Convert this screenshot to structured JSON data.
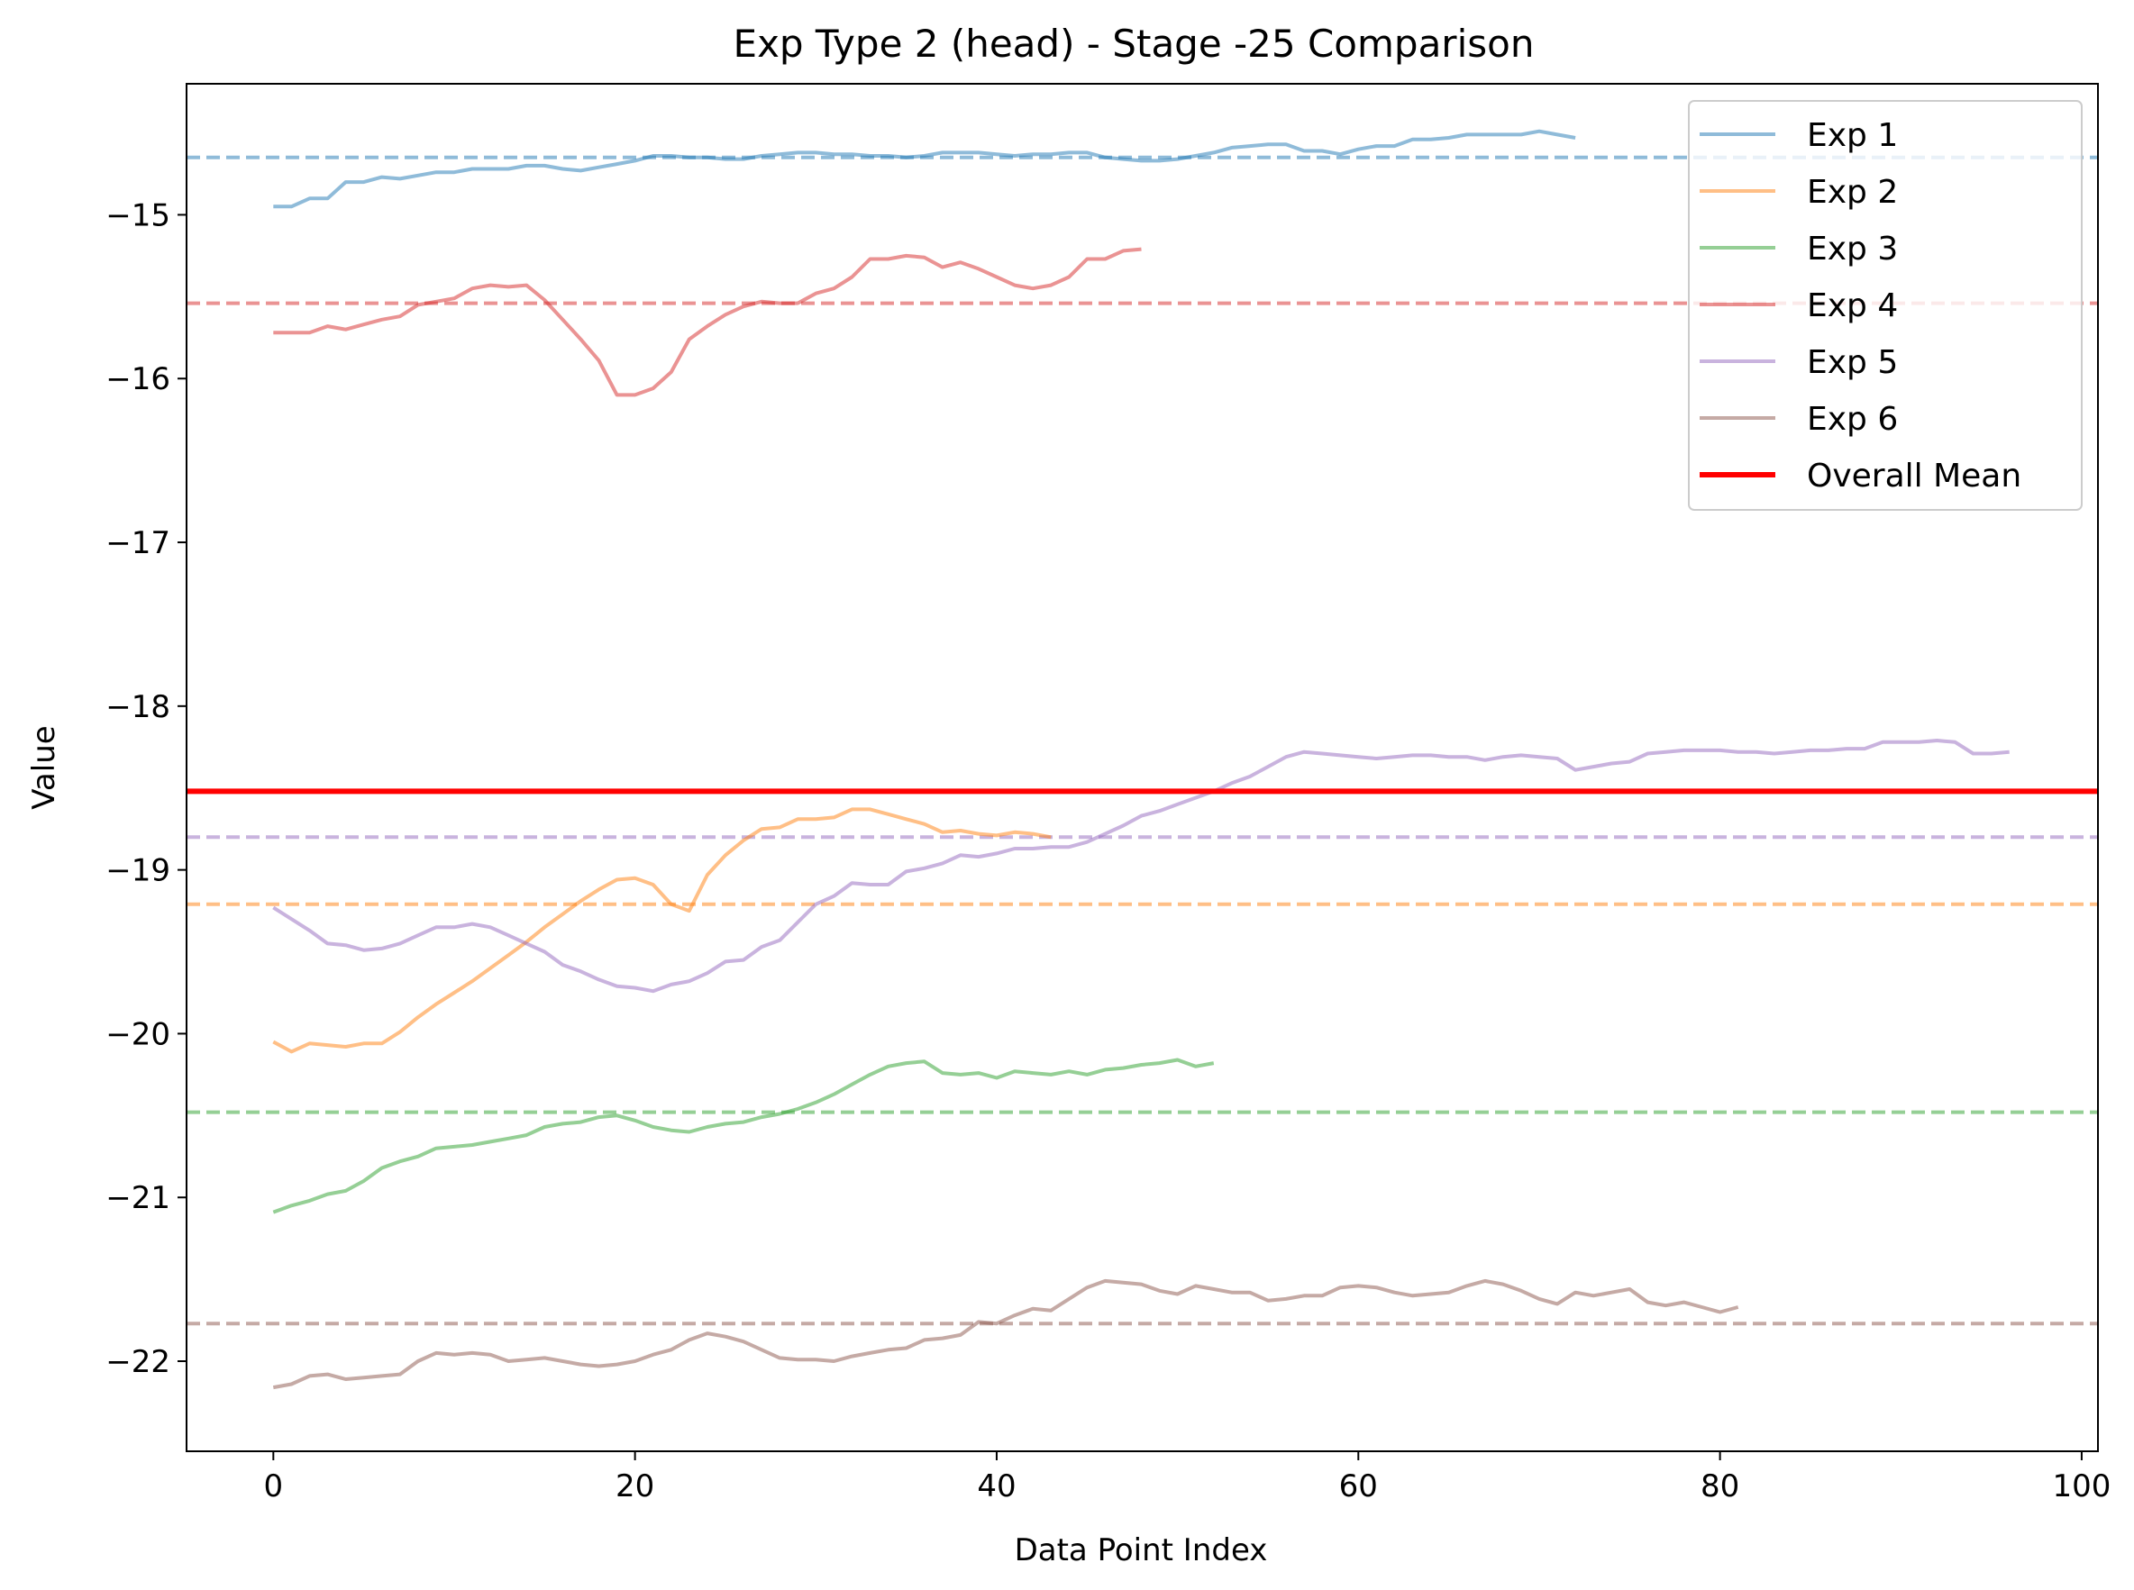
{
  "chart_data": {
    "type": "line",
    "title": "Exp Type 2 (head) - Stage -25 Comparison",
    "xlabel": "Data Point Index",
    "ylabel": "Value",
    "xlim": [
      -4.8,
      100.9
    ],
    "ylim": [
      -22.55,
      -14.2
    ],
    "xticks": [
      0,
      20,
      40,
      60,
      80,
      100
    ],
    "yticks": [
      -15,
      -16,
      -17,
      -18,
      -19,
      -20,
      -21,
      -22
    ],
    "xtick_labels": [
      "0",
      "20",
      "40",
      "60",
      "80",
      "100"
    ],
    "ytick_labels": [
      "−15",
      "−16",
      "−17",
      "−18",
      "−19",
      "−20",
      "−21",
      "−22"
    ],
    "legend_position": "top-right",
    "grid": false,
    "overall_mean": {
      "name": "Overall Mean",
      "value": -18.52,
      "color": "#ff0000"
    },
    "series": [
      {
        "name": "Exp 1",
        "color": "#1f77b4",
        "mean": -14.65,
        "values": [
          -14.95,
          -14.95,
          -14.9,
          -14.9,
          -14.8,
          -14.8,
          -14.77,
          -14.78,
          -14.76,
          -14.74,
          -14.74,
          -14.72,
          -14.72,
          -14.72,
          -14.7,
          -14.7,
          -14.72,
          -14.73,
          -14.71,
          -14.69,
          -14.67,
          -14.64,
          -14.64,
          -14.65,
          -14.65,
          -14.66,
          -14.66,
          -14.64,
          -14.63,
          -14.62,
          -14.62,
          -14.63,
          -14.63,
          -14.64,
          -14.64,
          -14.65,
          -14.64,
          -14.62,
          -14.62,
          -14.62,
          -14.63,
          -14.64,
          -14.63,
          -14.63,
          -14.62,
          -14.62,
          -14.65,
          -14.66,
          -14.67,
          -14.67,
          -14.66,
          -14.64,
          -14.62,
          -14.59,
          -14.58,
          -14.57,
          -14.57,
          -14.61,
          -14.61,
          -14.63,
          -14.6,
          -14.58,
          -14.58,
          -14.54,
          -14.54,
          -14.53,
          -14.51,
          -14.51,
          -14.51,
          -14.51,
          -14.49,
          -14.51,
          -14.53
        ]
      },
      {
        "name": "Exp 2",
        "color": "#ff7f0e",
        "mean": -19.21,
        "values": [
          -20.05,
          -20.11,
          -20.06,
          -20.07,
          -20.08,
          -20.06,
          -20.06,
          -19.99,
          -19.9,
          -19.82,
          -19.75,
          -19.68,
          -19.6,
          -19.52,
          -19.44,
          -19.35,
          -19.27,
          -19.19,
          -19.12,
          -19.06,
          -19.05,
          -19.09,
          -19.21,
          -19.25,
          -19.03,
          -18.91,
          -18.82,
          -18.75,
          -18.74,
          -18.69,
          -18.69,
          -18.68,
          -18.63,
          -18.63,
          -18.66,
          -18.69,
          -18.72,
          -18.77,
          -18.76,
          -18.78,
          -18.79,
          -18.77,
          -18.78,
          -18.8
        ]
      },
      {
        "name": "Exp 3",
        "color": "#2ca02c",
        "mean": -20.48,
        "values": [
          -21.09,
          -21.05,
          -21.02,
          -20.98,
          -20.96,
          -20.9,
          -20.82,
          -20.78,
          -20.75,
          -20.7,
          -20.69,
          -20.68,
          -20.66,
          -20.64,
          -20.62,
          -20.57,
          -20.55,
          -20.54,
          -20.51,
          -20.5,
          -20.53,
          -20.57,
          -20.59,
          -20.6,
          -20.57,
          -20.55,
          -20.54,
          -20.51,
          -20.49,
          -20.46,
          -20.42,
          -20.37,
          -20.31,
          -20.25,
          -20.2,
          -20.18,
          -20.17,
          -20.24,
          -20.25,
          -20.24,
          -20.27,
          -20.23,
          -20.24,
          -20.25,
          -20.23,
          -20.25,
          -20.22,
          -20.21,
          -20.19,
          -20.18,
          -20.16,
          -20.2,
          -20.18
        ]
      },
      {
        "name": "Exp 4",
        "color": "#d62728",
        "mean": -15.54,
        "values": [
          -15.72,
          -15.72,
          -15.72,
          -15.68,
          -15.7,
          -15.67,
          -15.64,
          -15.62,
          -15.55,
          -15.53,
          -15.51,
          -15.45,
          -15.43,
          -15.44,
          -15.43,
          -15.52,
          -15.64,
          -15.76,
          -15.89,
          -16.1,
          -16.1,
          -16.06,
          -15.96,
          -15.76,
          -15.68,
          -15.61,
          -15.56,
          -15.53,
          -15.54,
          -15.54,
          -15.48,
          -15.45,
          -15.38,
          -15.27,
          -15.27,
          -15.25,
          -15.26,
          -15.32,
          -15.29,
          -15.33,
          -15.38,
          -15.43,
          -15.45,
          -15.43,
          -15.38,
          -15.27,
          -15.27,
          -15.22,
          -15.21
        ]
      },
      {
        "name": "Exp 5",
        "color": "#9467bd",
        "mean": -18.8,
        "values": [
          -19.23,
          -19.3,
          -19.37,
          -19.45,
          -19.46,
          -19.49,
          -19.48,
          -19.45,
          -19.4,
          -19.35,
          -19.35,
          -19.33,
          -19.35,
          -19.4,
          -19.45,
          -19.5,
          -19.58,
          -19.62,
          -19.67,
          -19.71,
          -19.72,
          -19.74,
          -19.7,
          -19.68,
          -19.63,
          -19.56,
          -19.55,
          -19.47,
          -19.43,
          -19.32,
          -19.21,
          -19.16,
          -19.08,
          -19.09,
          -19.09,
          -19.01,
          -18.99,
          -18.96,
          -18.91,
          -18.92,
          -18.9,
          -18.87,
          -18.87,
          -18.86,
          -18.86,
          -18.83,
          -18.78,
          -18.73,
          -18.67,
          -18.64,
          -18.6,
          -18.56,
          -18.52,
          -18.47,
          -18.43,
          -18.37,
          -18.31,
          -18.28,
          -18.29,
          -18.3,
          -18.31,
          -18.32,
          -18.31,
          -18.3,
          -18.3,
          -18.31,
          -18.31,
          -18.33,
          -18.31,
          -18.3,
          -18.31,
          -18.32,
          -18.39,
          -18.37,
          -18.35,
          -18.34,
          -18.29,
          -18.28,
          -18.27,
          -18.27,
          -18.27,
          -18.28,
          -18.28,
          -18.29,
          -18.28,
          -18.27,
          -18.27,
          -18.26,
          -18.26,
          -18.22,
          -18.22,
          -18.22,
          -18.21,
          -18.22,
          -18.29,
          -18.29,
          -18.28
        ]
      },
      {
        "name": "Exp 6",
        "color": "#8c564b",
        "mean": -21.77,
        "values": [
          -22.16,
          -22.14,
          -22.09,
          -22.08,
          -22.11,
          -22.1,
          -22.09,
          -22.08,
          -22.0,
          -21.95,
          -21.96,
          -21.95,
          -21.96,
          -22.0,
          -21.99,
          -21.98,
          -22.0,
          -22.02,
          -22.03,
          -22.02,
          -22.0,
          -21.96,
          -21.93,
          -21.87,
          -21.83,
          -21.85,
          -21.88,
          -21.93,
          -21.98,
          -21.99,
          -21.99,
          -22.0,
          -21.97,
          -21.95,
          -21.93,
          -21.92,
          -21.87,
          -21.86,
          -21.84,
          -21.76,
          -21.77,
          -21.72,
          -21.68,
          -21.69,
          -21.62,
          -21.55,
          -21.51,
          -21.52,
          -21.53,
          -21.57,
          -21.59,
          -21.54,
          -21.56,
          -21.58,
          -21.58,
          -21.63,
          -21.62,
          -21.6,
          -21.6,
          -21.55,
          -21.54,
          -21.55,
          -21.58,
          -21.6,
          -21.59,
          -21.58,
          -21.54,
          -21.51,
          -21.53,
          -21.57,
          -21.62,
          -21.65,
          -21.58,
          -21.6,
          -21.58,
          -21.56,
          -21.64,
          -21.66,
          -21.64,
          -21.67,
          -21.7,
          -21.67
        ]
      }
    ]
  }
}
